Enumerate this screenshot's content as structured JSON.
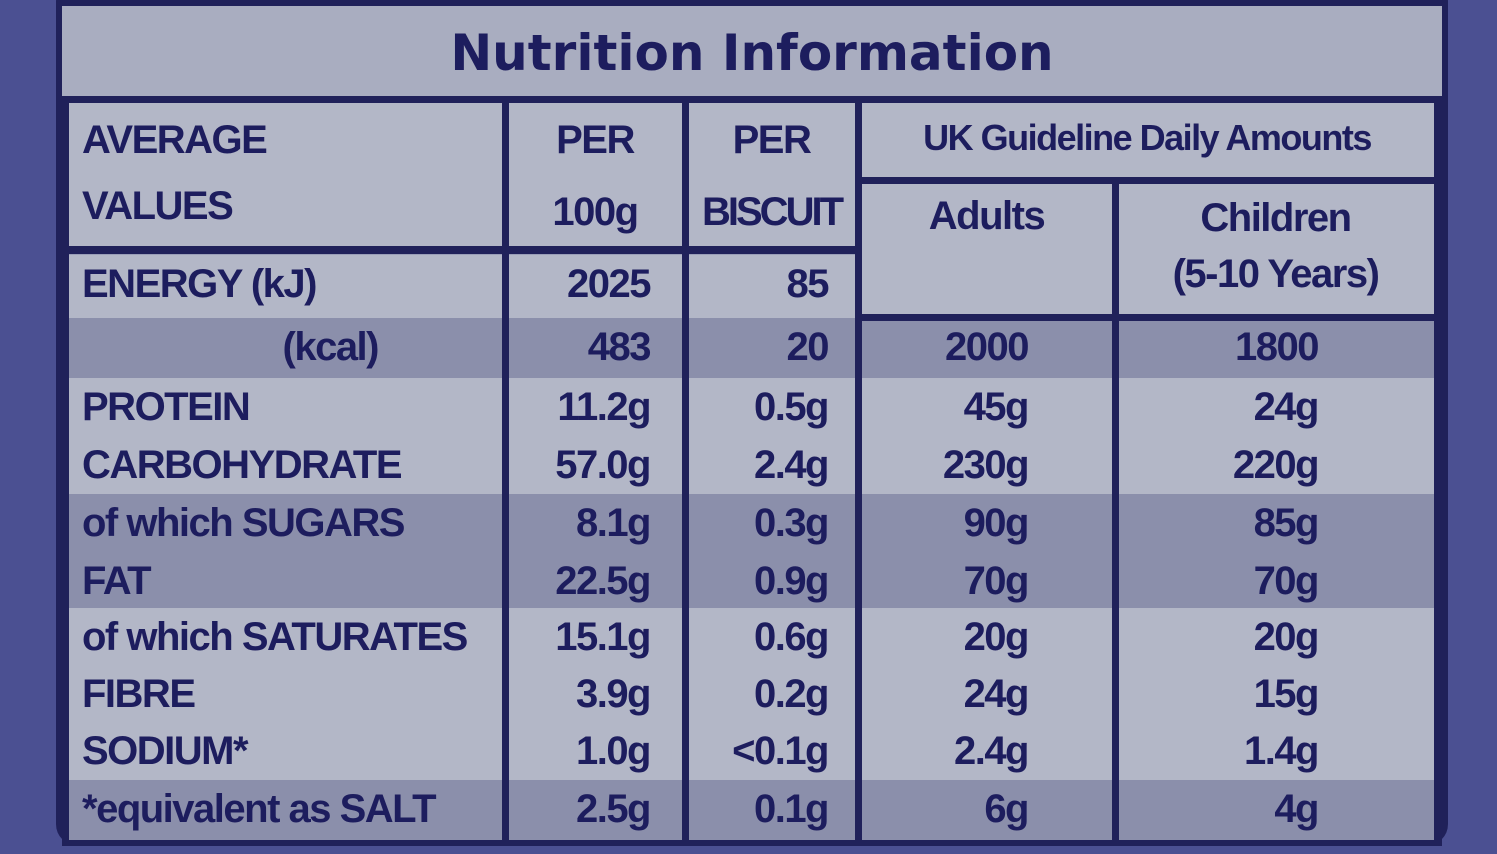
{
  "title": "Nutrition Information",
  "header": {
    "average_values": [
      "AVERAGE",
      "VALUES"
    ],
    "per_100g": [
      "PER",
      "100g"
    ],
    "per_biscuit": [
      "PER",
      "BISCUIT"
    ],
    "gda": "UK Guideline Daily Amounts",
    "adults": "Adults",
    "children": [
      "Children",
      "(5-10 Years)"
    ]
  },
  "rows": [
    {
      "label": "ENERGY (kJ)",
      "values": [
        "2025",
        "85"
      ]
    },
    {
      "label": "(kcal)",
      "values": [
        "483",
        "20",
        "2000",
        "1800"
      ]
    },
    {
      "label": "PROTEIN",
      "values": [
        "11.2g",
        "0.5g",
        "45g",
        "24g"
      ]
    },
    {
      "label": "CARBOHYDRATE",
      "values": [
        "57.0g",
        "2.4g",
        "230g",
        "220g"
      ]
    },
    {
      "label": "of which SUGARS",
      "values": [
        "8.1g",
        "0.3g",
        "90g",
        "85g"
      ]
    },
    {
      "label": "FAT",
      "values": [
        "22.5g",
        "0.9g",
        "70g",
        "70g"
      ]
    },
    {
      "label": "of which SATURATES",
      "values": [
        "15.1g",
        "0.6g",
        "20g",
        "20g"
      ]
    },
    {
      "label": "FIBRE",
      "values": [
        "3.9g",
        "0.2g",
        "24g",
        "15g"
      ]
    },
    {
      "label": "SODIUM*",
      "values": [
        "1.0g",
        "<0.1g",
        "2.4g",
        "1.4g"
      ]
    },
    {
      "label": "*equivalent as SALT",
      "values": [
        "2.5g",
        "0.1g",
        "6g",
        "4g"
      ]
    }
  ]
}
